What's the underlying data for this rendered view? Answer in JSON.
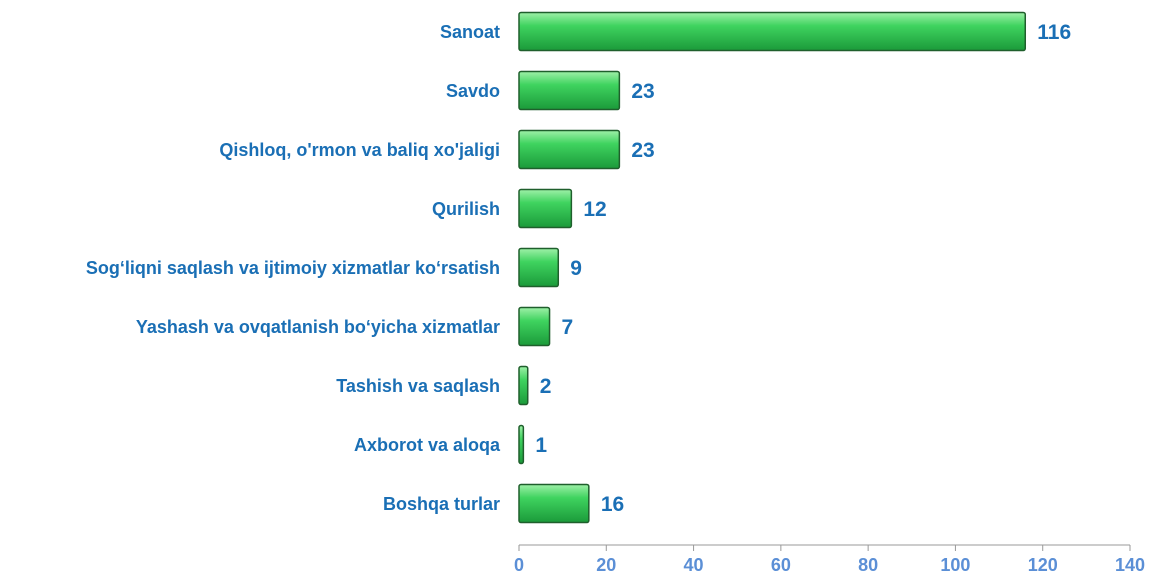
{
  "chart_data": {
    "type": "barh",
    "categories": [
      "Sanoat",
      "Savdo",
      "Qishloq, o'rmon va baliq xo'jaligi",
      "Qurilish",
      "Sog‘liqni saqlash va ijtimoiy xizmatlar ko‘rsatish",
      "Yashash va ovqatlanish bo‘yicha xizmatlar",
      "Tashish va saqlash",
      "Axborot va aloqa",
      "Boshqa turlar"
    ],
    "values": [
      116,
      23,
      23,
      12,
      9,
      7,
      2,
      1,
      16
    ],
    "color": "#2fbf4f",
    "xlim": [
      0,
      140
    ],
    "xticks": [
      0,
      20,
      40,
      60,
      80,
      100,
      120,
      140
    ]
  }
}
